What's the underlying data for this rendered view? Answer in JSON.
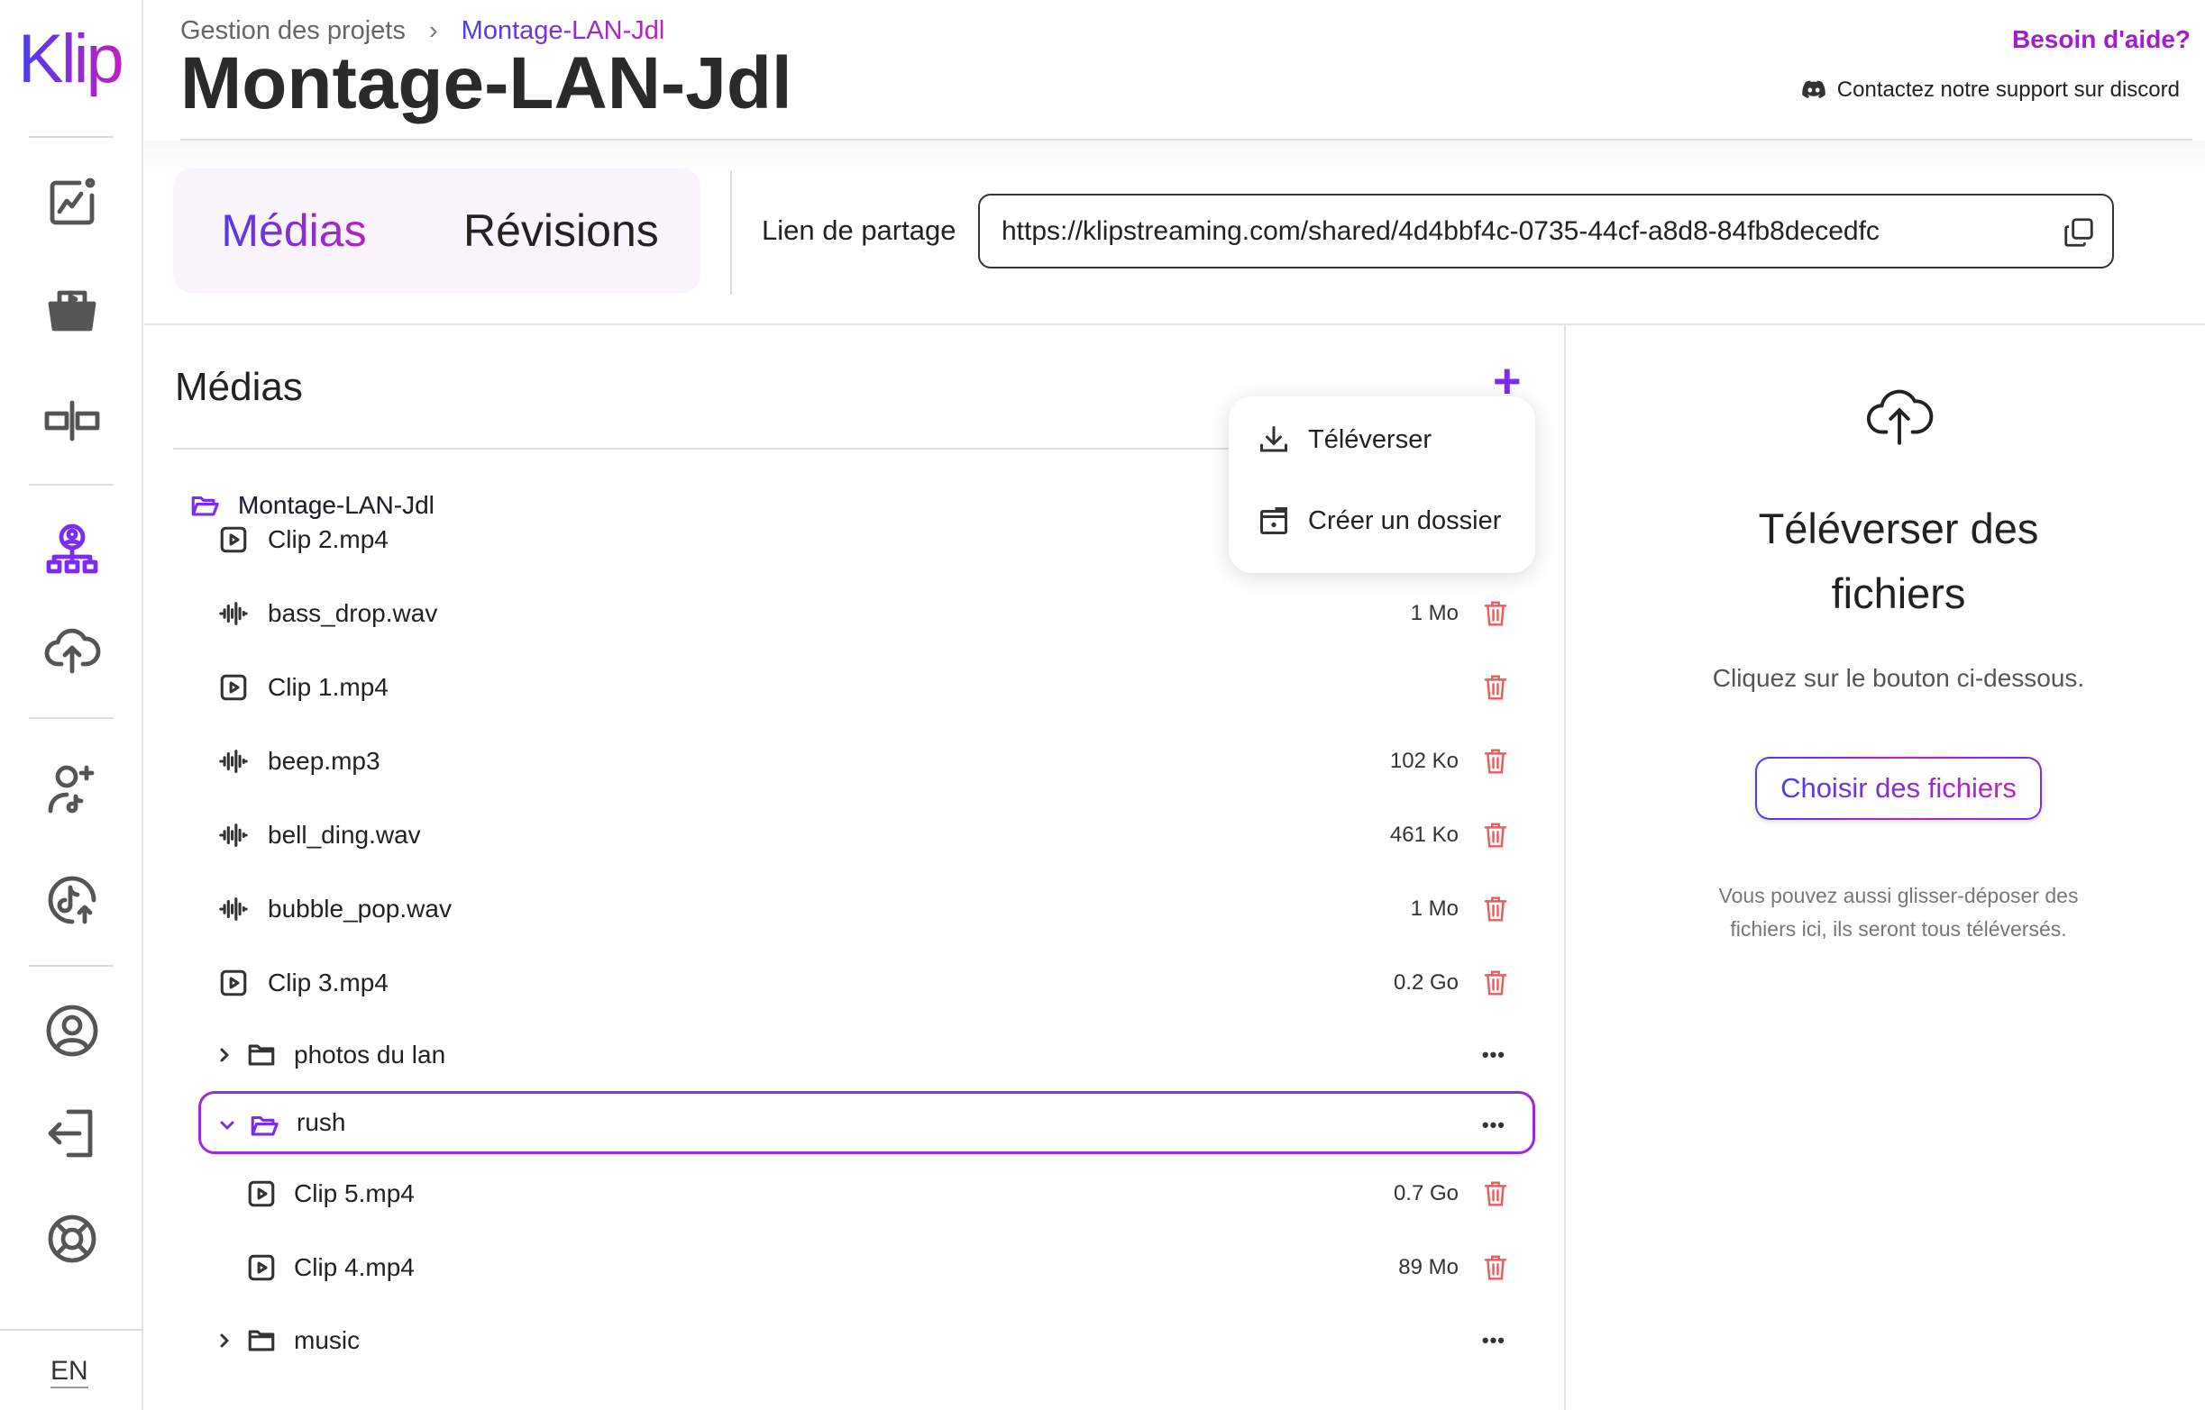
{
  "logo": "Klip",
  "colors": {
    "accent": "#7b2cf0",
    "gradient_start": "#4a3cf0",
    "gradient_end": "#c21fc0",
    "delete": "#f05a5a"
  },
  "sidebar": {
    "items": [
      {
        "icon": "analytics-icon"
      },
      {
        "icon": "video-folder-icon"
      },
      {
        "icon": "split-editor-icon"
      },
      {
        "icon": "project-tree-icon",
        "active": true
      },
      {
        "icon": "cloud-upload-icon"
      },
      {
        "icon": "add-user-tiktok-icon"
      },
      {
        "icon": "tiktok-upload-icon"
      },
      {
        "icon": "account-icon"
      },
      {
        "icon": "logout-icon"
      },
      {
        "icon": "support-icon"
      }
    ],
    "language": "EN"
  },
  "breadcrumb": {
    "parent": "Gestion des projets",
    "separator": "›",
    "current": "Montage-LAN-Jdl"
  },
  "page_title": "Montage-LAN-Jdl",
  "help": {
    "title": "Besoin d'aide?",
    "discord": "Contactez notre support sur discord"
  },
  "tabs": [
    {
      "label": "Médias",
      "active": true
    },
    {
      "label": "Révisions",
      "active": false
    }
  ],
  "share": {
    "label": "Lien de partage",
    "url": "https://klipstreaming.com/shared/4d4bbf4c-0735-44cf-a8d8-84fb8decedfc"
  },
  "media": {
    "heading": "Médias",
    "add": "+",
    "root": "Montage-LAN-Jdl",
    "items": [
      {
        "name": "Clip 2.mp4",
        "type": "video",
        "size": ""
      },
      {
        "name": "bass_drop.wav",
        "type": "audio",
        "size": "1 Mo"
      },
      {
        "name": "Clip 1.mp4",
        "type": "video",
        "size": ""
      },
      {
        "name": "beep.mp3",
        "type": "audio",
        "size": "102 Ko"
      },
      {
        "name": "bell_ding.wav",
        "type": "audio",
        "size": "461 Ko"
      },
      {
        "name": "bubble_pop.wav",
        "type": "audio",
        "size": "1 Mo"
      },
      {
        "name": "Clip 3.mp4",
        "type": "video",
        "size": "0.2 Go"
      },
      {
        "name": "photos du lan",
        "type": "folder",
        "expanded": false
      },
      {
        "name": "rush",
        "type": "folder",
        "expanded": true,
        "selected": true
      },
      {
        "name": "Clip 5.mp4",
        "type": "video",
        "size": "0.7 Go",
        "nested": true
      },
      {
        "name": "Clip 4.mp4",
        "type": "video",
        "size": "89 Mo",
        "nested": true
      },
      {
        "name": "music",
        "type": "folder",
        "expanded": false
      }
    ],
    "more": "•••"
  },
  "menu": {
    "upload": "Téléverser",
    "create_folder": "Créer un dossier"
  },
  "upload_panel": {
    "title_line1": "Téléverser des",
    "title_line2": "fichiers",
    "subtitle": "Cliquez sur le bouton ci-dessous.",
    "button": "Choisir des fichiers",
    "note_line1": "Vous pouvez aussi glisser-déposer des",
    "note_line2": "fichiers ici, ils seront tous téléversés."
  }
}
